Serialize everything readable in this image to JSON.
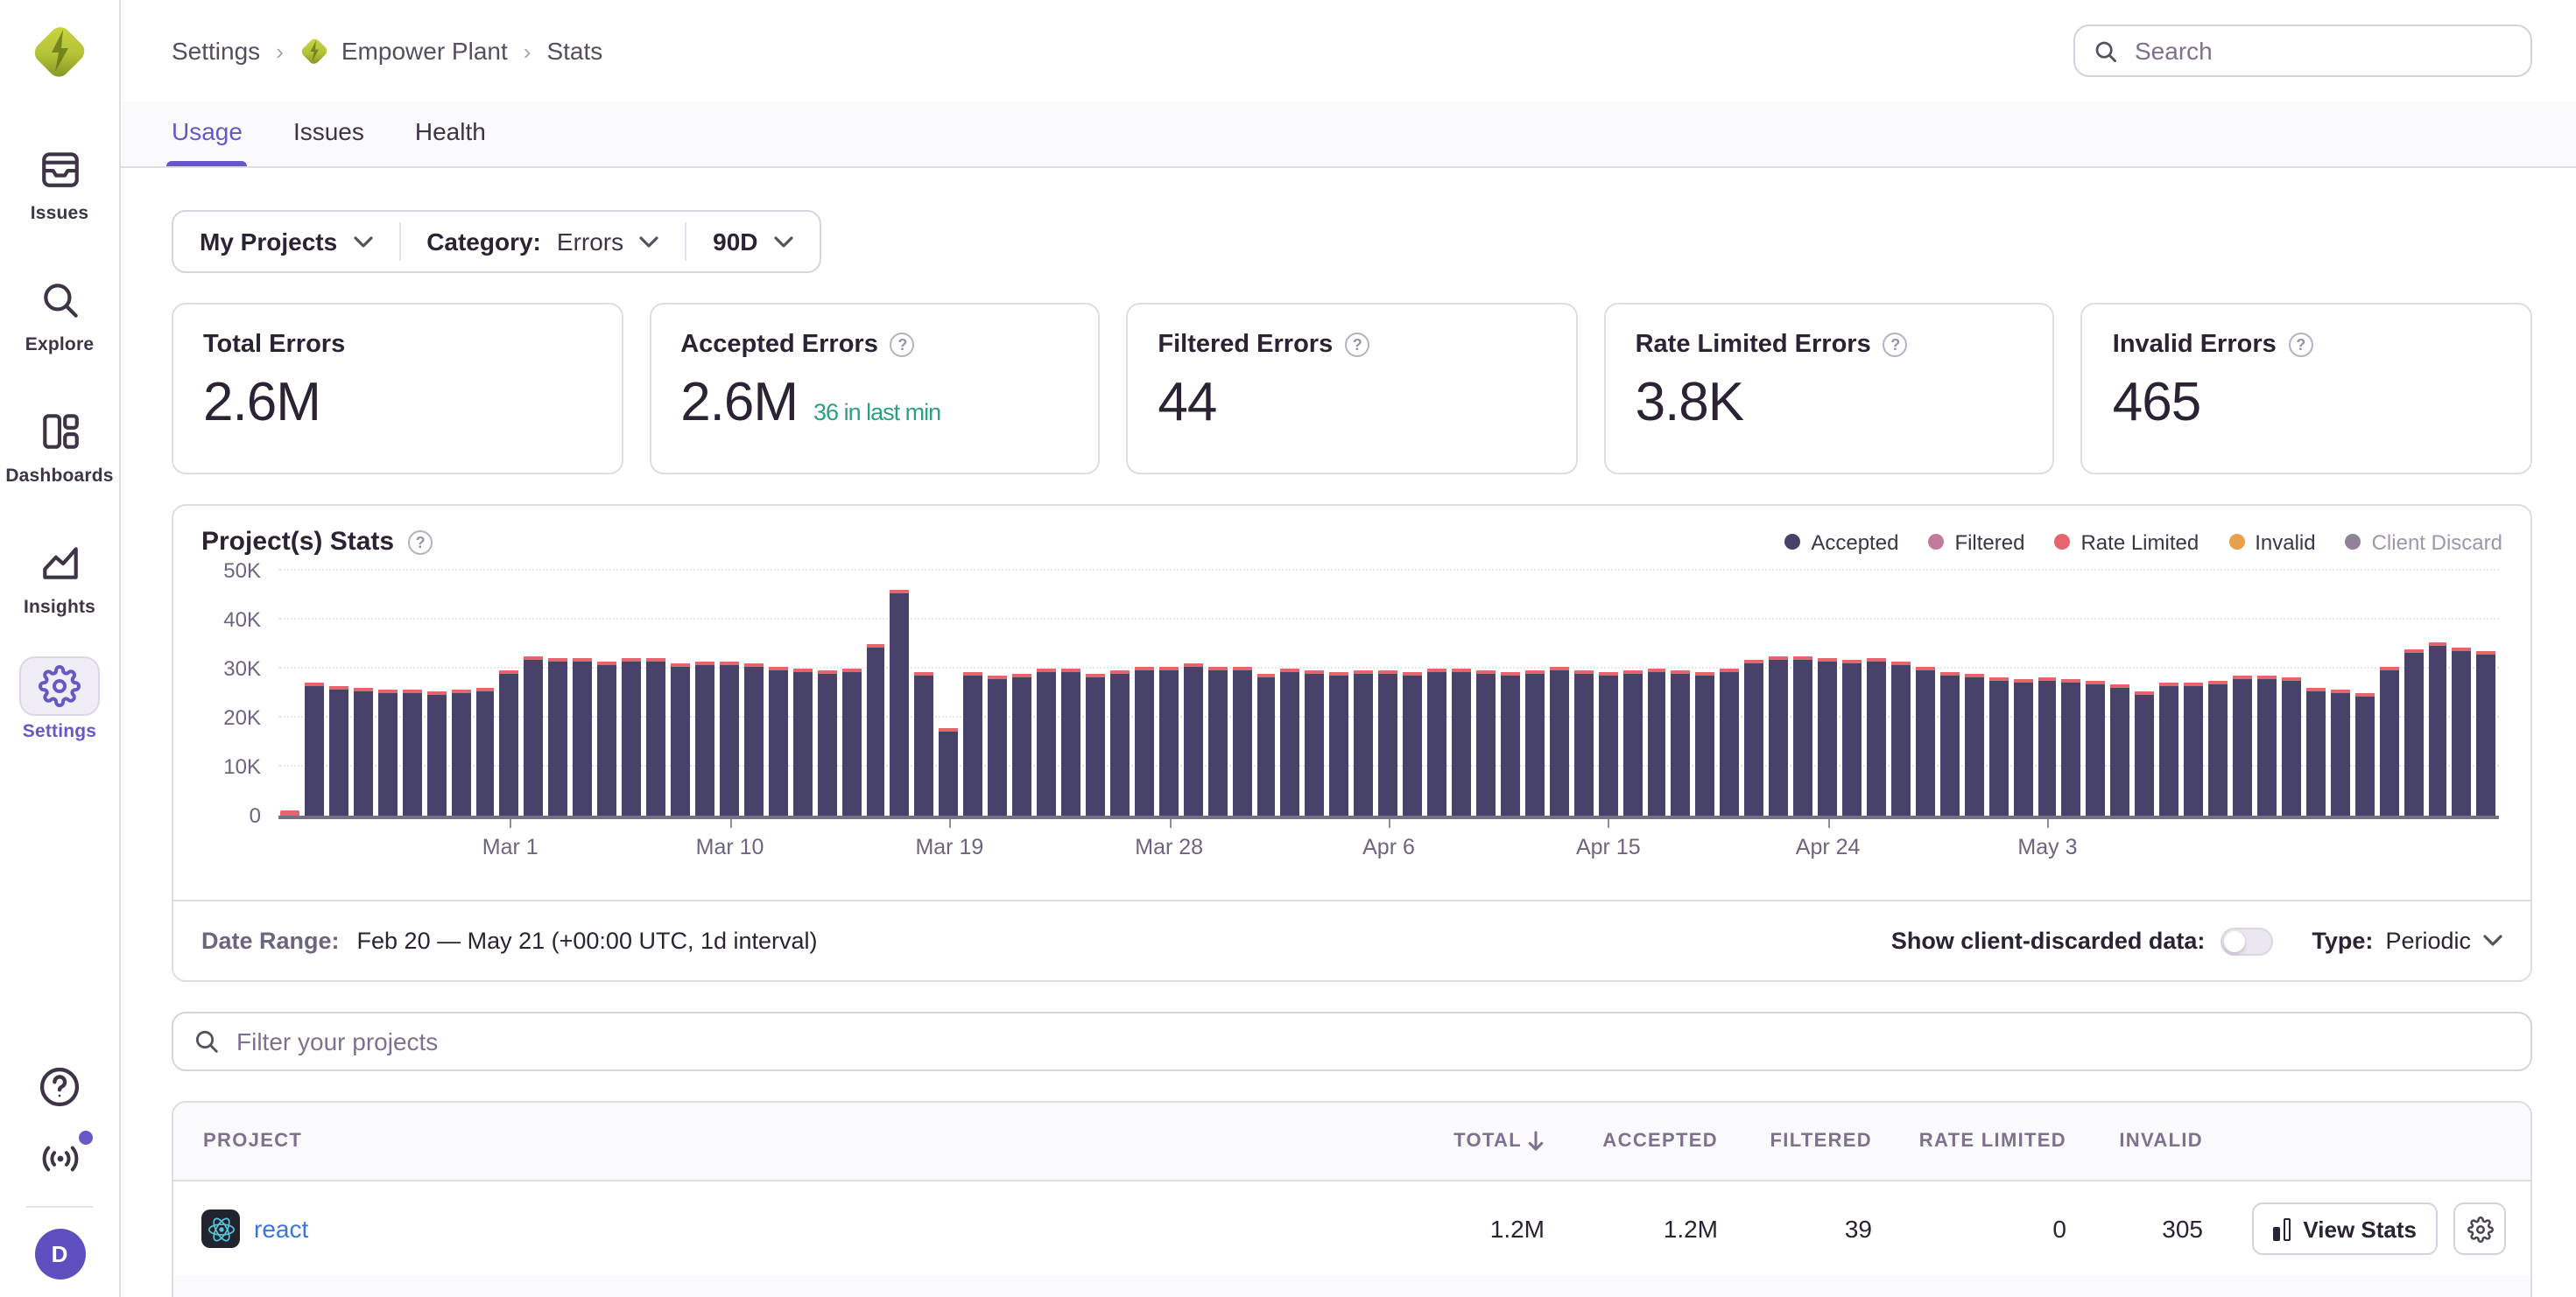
{
  "sidebar": {
    "items": [
      {
        "label": "Issues"
      },
      {
        "label": "Explore"
      },
      {
        "label": "Dashboards"
      },
      {
        "label": "Insights"
      },
      {
        "label": "Settings",
        "active": true
      }
    ],
    "avatar_letter": "D"
  },
  "breadcrumb": {
    "items": [
      "Settings",
      "Empower Plant",
      "Stats"
    ],
    "separator": "›"
  },
  "search": {
    "placeholder": "Search"
  },
  "tabs": [
    {
      "label": "Usage",
      "active": true
    },
    {
      "label": "Issues",
      "active": false
    },
    {
      "label": "Health",
      "active": false
    }
  ],
  "filters": {
    "projects": "My Projects",
    "category_label": "Category:",
    "category_value": "Errors",
    "period": "90D"
  },
  "cards": [
    {
      "title": "Total Errors",
      "value": "2.6M",
      "help": false,
      "sub": ""
    },
    {
      "title": "Accepted Errors",
      "value": "2.6M",
      "help": true,
      "sub": "36 in last min"
    },
    {
      "title": "Filtered Errors",
      "value": "44",
      "help": true,
      "sub": ""
    },
    {
      "title": "Rate Limited Errors",
      "value": "3.8K",
      "help": true,
      "sub": ""
    },
    {
      "title": "Invalid Errors",
      "value": "465",
      "help": true,
      "sub": ""
    }
  ],
  "chart_data": {
    "type": "bar",
    "stacked": true,
    "title": "Project(s) Stats",
    "ylabel": "",
    "xlabel": "",
    "ylim_k": [
      0,
      50
    ],
    "y_ticks": [
      "0",
      "10K",
      "20K",
      "30K",
      "40K",
      "50K"
    ],
    "x_range": [
      "Feb 20",
      "May 21"
    ],
    "x_tick_labels": [
      "Mar 1",
      "Mar 10",
      "Mar 19",
      "Mar 28",
      "Apr 6",
      "Apr 15",
      "Apr 24",
      "May 3"
    ],
    "x_tick_indices": [
      9,
      18,
      27,
      36,
      45,
      54,
      63,
      72
    ],
    "legend": [
      {
        "label": "Accepted",
        "color": "#464269",
        "enabled": true
      },
      {
        "label": "Filtered",
        "color": "#c27a9b",
        "enabled": true
      },
      {
        "label": "Rate Limited",
        "color": "#e5646e",
        "enabled": true
      },
      {
        "label": "Invalid",
        "color": "#e8a04b",
        "enabled": true
      },
      {
        "label": "Client Discard",
        "color": "#8f8299",
        "enabled": false
      }
    ],
    "series": [
      {
        "name": "Accepted",
        "unit": "K",
        "values": [
          0.5,
          27.0,
          26.5,
          26.2,
          25.6,
          25.6,
          25.2,
          25.8,
          26.1,
          29.5,
          32.6,
          32.1,
          32.3,
          31.6,
          32.1,
          32.1,
          31.2,
          31.5,
          31.5,
          31.0,
          30.4,
          29.9,
          29.6,
          30.0,
          35.0,
          46.0,
          29.2,
          18.0,
          29.4,
          28.6,
          29.0,
          29.9,
          29.9,
          29.1,
          29.5,
          30.4,
          30.4,
          31.0,
          30.5,
          30.4,
          29.1,
          29.9,
          29.6,
          29.3,
          29.8,
          29.6,
          29.3,
          29.9,
          30.1,
          29.5,
          29.2,
          29.8,
          30.2,
          29.6,
          29.4,
          29.8,
          30.1,
          29.6,
          29.3,
          29.9,
          31.9,
          32.6,
          32.4,
          32.2,
          31.8,
          32.1,
          31.4,
          30.2,
          29.4,
          28.9,
          28.3,
          27.9,
          28.1,
          27.7,
          27.5,
          26.9,
          25.4,
          27.2,
          27.0,
          27.6,
          28.6,
          28.7,
          28.2,
          25.9,
          25.7,
          25.1,
          30.5,
          33.9,
          35.2,
          34.3,
          33.6
        ]
      },
      {
        "name": "Rate Limited",
        "unit": "K",
        "approx_per_day": 0.3
      }
    ]
  },
  "chart_footer": {
    "date_range_label": "Date Range:",
    "date_range_value": "Feb 20 — May 21 (+00:00 UTC, 1d interval)",
    "toggle_label": "Show client-discarded data:",
    "toggle_on": false,
    "type_label": "Type:",
    "type_value": "Periodic"
  },
  "project_filter": {
    "placeholder": "Filter your projects"
  },
  "table": {
    "columns": [
      "PROJECT",
      "TOTAL",
      "ACCEPTED",
      "FILTERED",
      "RATE LIMITED",
      "INVALID",
      ""
    ],
    "sorted_column": "TOTAL",
    "sort_direction": "desc",
    "rows": [
      {
        "project": "react",
        "total": "1.2M",
        "accepted": "1.2M",
        "filtered": "39",
        "rate_limited": "0",
        "invalid": "305",
        "action": "View Stats"
      }
    ]
  }
}
